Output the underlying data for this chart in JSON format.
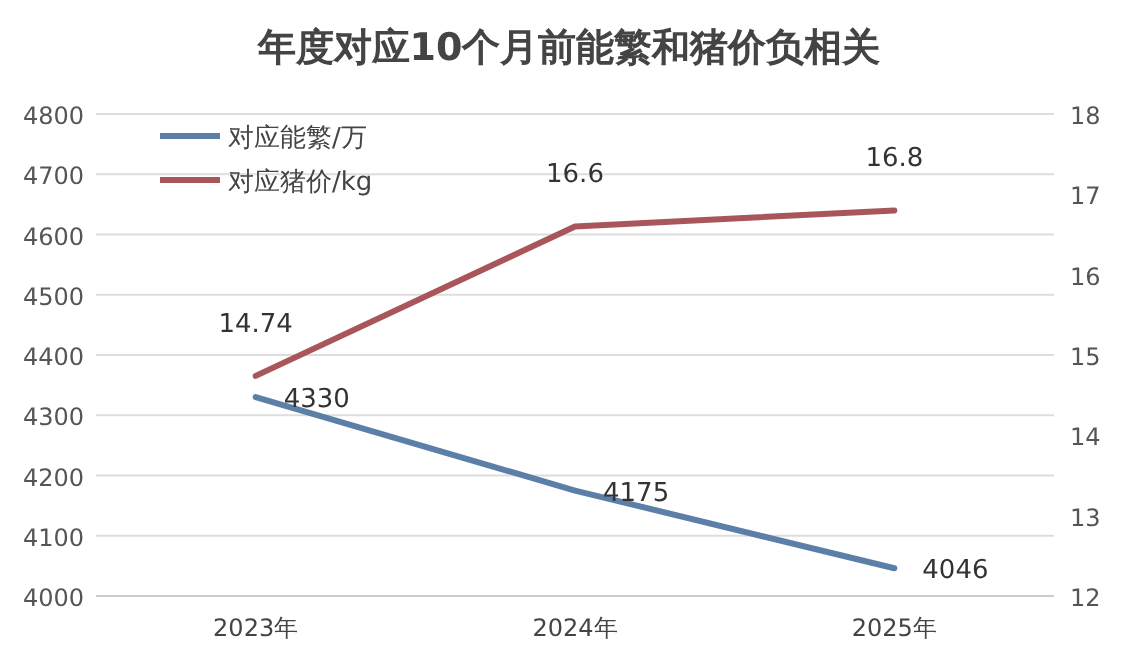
{
  "chart_data": {
    "type": "line",
    "title": "年度对应10个月前能繁和猪价负相关",
    "categories": [
      "2023年",
      "2024年",
      "2025年"
    ],
    "series": [
      {
        "name": "对应能繁/万",
        "color": "#5b7fa6",
        "values": [
          4330,
          4175,
          4046
        ]
      },
      {
        "name": "对应猪价/kg",
        "color": "#a9565a",
        "values": [
          14.74,
          16.6,
          16.8
        ],
        "axis": "y2"
      }
    ],
    "ylim": [
      4000,
      4800
    ],
    "yticks": [
      4000,
      4100,
      4200,
      4300,
      4400,
      4500,
      4600,
      4700,
      4800
    ],
    "y2lim": [
      12,
      18
    ],
    "y2ticks": [
      12,
      13,
      14,
      15,
      16,
      17,
      18
    ],
    "grid": "y",
    "legend": "top left",
    "data_labels": true,
    "marker": "none",
    "line_style": "solid"
  }
}
